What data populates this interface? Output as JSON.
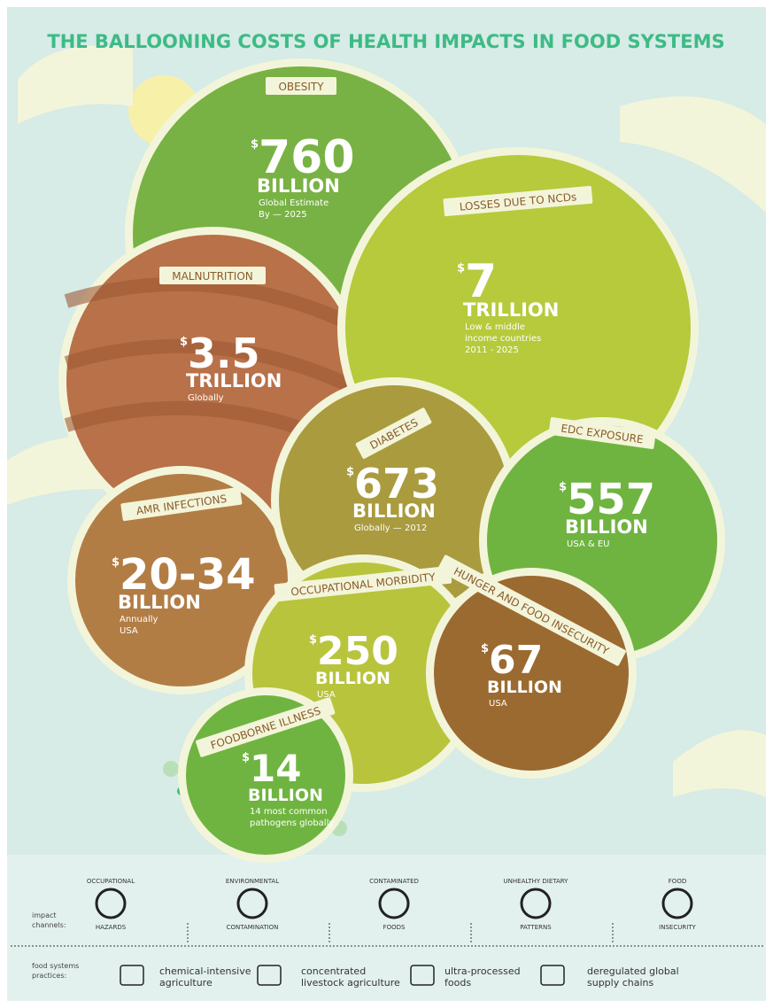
{
  "title": "THE BALLOONING COSTS OF HEALTH IMPACTS IN FOOD SYSTEMS",
  "bubbles": [
    {
      "label": "OBESITY",
      "currency": "$",
      "amount": "760",
      "unit": "BILLION",
      "notes": [
        "Global Estimate",
        "By — 2025"
      ]
    },
    {
      "label": "MALNUTRITION",
      "currency": "$",
      "amount": "3.5",
      "unit": "TRILLION",
      "notes": [
        "Globally"
      ]
    },
    {
      "label": "LOSSES DUE TO NCDs",
      "currency": "$",
      "amount": "7",
      "unit": "TRILLION",
      "notes": [
        "Low & middle",
        "income countries",
        "2011 - 2025"
      ]
    },
    {
      "label": "AMR INFECTIONS",
      "currency": "$",
      "amount": "20-34",
      "unit": "BILLION",
      "notes": [
        "Annually",
        "USA"
      ]
    },
    {
      "label": "DIABETES",
      "currency": "$",
      "amount": "673",
      "unit": "BILLION",
      "notes": [
        "Globally — 2012"
      ]
    },
    {
      "label": "EDC EXPOSURE",
      "currency": "$",
      "amount": "557",
      "unit": "BILLION",
      "notes": [
        "USA & EU"
      ]
    },
    {
      "label": "OCCUPATIONAL MORBIDITY",
      "currency": "$",
      "amount": "250",
      "unit": "BILLION",
      "notes": [
        "USA"
      ]
    },
    {
      "label": "HUNGER AND FOOD INSECURITY",
      "currency": "$",
      "amount": "67",
      "unit": "BILLION",
      "notes": [
        "USA"
      ]
    },
    {
      "label": "FOODBORNE ILLNESS",
      "currency": "$",
      "amount": "14",
      "unit": "BILLION",
      "notes": [
        "14 most common",
        "pathogens globally"
      ]
    }
  ],
  "channels": {
    "label": [
      "impact",
      "channels:"
    ],
    "items": [
      {
        "top": "OCCUPATIONAL",
        "bottom": "HAZARDS"
      },
      {
        "top": "ENVIRONMENTAL",
        "bottom": "CONTAMINATION"
      },
      {
        "top": "CONTAMINATED",
        "bottom": "FOODS"
      },
      {
        "top": "UNHEALTHY DIETARY",
        "bottom": "PATTERNS"
      },
      {
        "top": "FOOD",
        "bottom": "INSECURITY"
      }
    ]
  },
  "practices": {
    "label": [
      "food systems",
      "practices:"
    ],
    "items": [
      [
        "chemical-intensive",
        "agriculture"
      ],
      [
        "concentrated",
        "livestock agriculture"
      ],
      [
        "ultra-processed",
        "foods"
      ],
      [
        "deregulated global",
        "supply chains"
      ]
    ]
  }
}
